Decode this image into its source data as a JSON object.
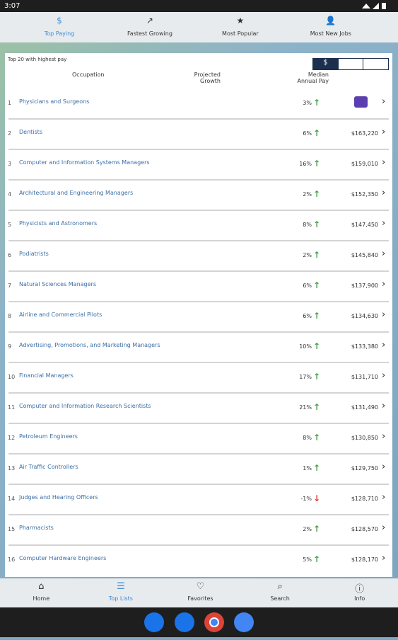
{
  "status_bar": {
    "time": "3:07"
  },
  "tabs": [
    "Top Paying",
    "Fastest Growing",
    "Most Popular",
    "Most New Jobs"
  ],
  "list": {
    "caption": "Top 20 with highest pay",
    "headers": {
      "occupation": "Occupation",
      "growth": "Projected Growth",
      "pay": "Median Annual Pay"
    },
    "rows": [
      {
        "rank": "1",
        "name": "Physicians and Surgeons",
        "growth": "3%"
      },
      {
        "rank": "2",
        "name": "Dentists",
        "growth": "6%",
        "pay": "$163,220"
      },
      {
        "rank": "3",
        "name": "Computer and Information Systems Managers",
        "growth": "16%",
        "pay": "$159,010"
      },
      {
        "rank": "4",
        "name": "Architectural and Engineering Managers",
        "growth": "2%",
        "pay": "$152,350"
      },
      {
        "rank": "5",
        "name": "Physicists and Astronomers",
        "growth": "8%",
        "pay": "$147,450"
      },
      {
        "rank": "6",
        "name": "Podiatrists",
        "growth": "2%",
        "pay": "$145,840"
      },
      {
        "rank": "7",
        "name": "Natural Sciences Managers",
        "growth": "6%",
        "pay": "$137,900"
      },
      {
        "rank": "8",
        "name": "Airline and Commercial Pilots",
        "growth": "6%",
        "pay": "$134,630"
      },
      {
        "rank": "9",
        "name": "Advertising, Promotions, and Marketing Managers",
        "growth": "10%",
        "pay": "$133,380"
      },
      {
        "rank": "10",
        "name": "Financial Managers",
        "growth": "17%",
        "pay": "$131,710"
      },
      {
        "rank": "11",
        "name": "Computer and Information Research Scientists",
        "growth": "21%",
        "pay": "$131,490"
      },
      {
        "rank": "12",
        "name": "Petroleum Engineers",
        "growth": "8%",
        "pay": "$130,850"
      },
      {
        "rank": "13",
        "name": "Air Traffic Controllers",
        "growth": "1%",
        "pay": "$129,750"
      },
      {
        "rank": "14",
        "name": "Judges and Hearing Officers",
        "growth": "-1%",
        "pay": "$128,710"
      },
      {
        "rank": "15",
        "name": "Pharmacists",
        "growth": "2%",
        "pay": "$128,570"
      },
      {
        "rank": "16",
        "name": "Computer Hardware Engineers",
        "growth": "5%",
        "pay": "$128,170"
      }
    ]
  },
  "bottom_nav": [
    "Home",
    "Top Lists",
    "Favorites",
    "Search",
    "Info"
  ]
}
